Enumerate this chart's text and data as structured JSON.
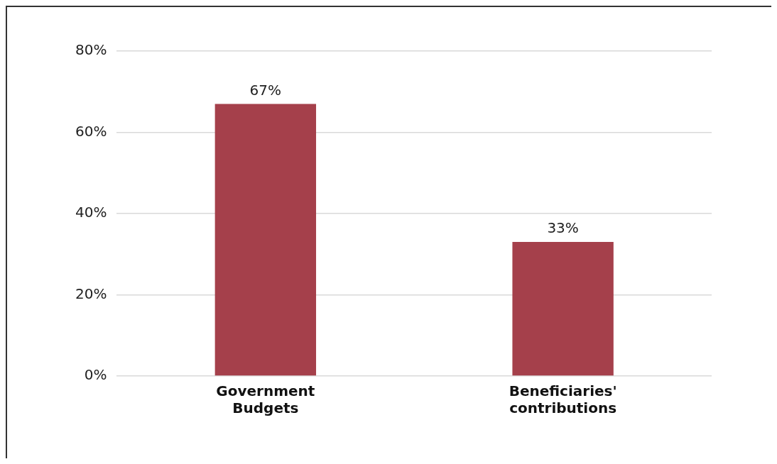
{
  "chart_data": {
    "type": "bar",
    "categories": [
      "Government Budgets",
      "Beneficiaries' contributions"
    ],
    "values": [
      67,
      33
    ],
    "value_labels": [
      "67%",
      "33%"
    ],
    "color": "#a5404b",
    "ylim": [
      0,
      80
    ],
    "yticks": [
      {
        "value": 0,
        "label": "0%"
      },
      {
        "value": 20,
        "label": "20%"
      },
      {
        "value": 40,
        "label": "40%"
      },
      {
        "value": 60,
        "label": "60%"
      },
      {
        "value": 80,
        "label": "80%"
      }
    ],
    "grid": "y",
    "legend": false
  }
}
